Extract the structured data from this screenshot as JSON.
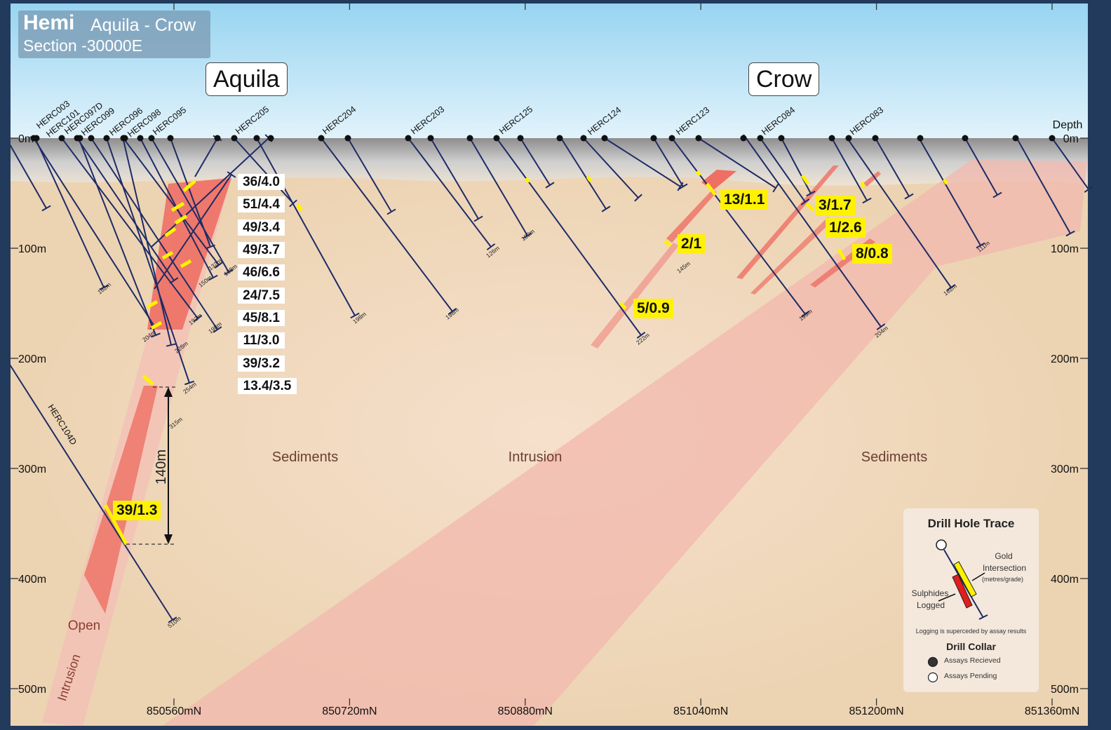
{
  "header": {
    "prospect": "Hemi",
    "deposits": "Aquila - Crow",
    "section": "Section -30000E"
  },
  "site_labels": {
    "aquila": "Aquila",
    "crow": "Crow"
  },
  "depth_label": "Depth",
  "depth_ticks": [
    "0m",
    "100m",
    "200m",
    "300m",
    "400m",
    "500m"
  ],
  "easting_ticks": [
    "850560mN",
    "850720mN",
    "850880mN",
    "851040mN",
    "851200mN",
    "851360mN"
  ],
  "hole_names": [
    "HERC003",
    "HERC101",
    "HERC097D",
    "HERC099",
    "HERC096",
    "HERC098",
    "HERC095",
    "HERC205",
    "HERC204",
    "HERC203",
    "HERC125",
    "HERC124",
    "HERC123",
    "HERC084",
    "HERC083",
    "HERC104D"
  ],
  "depth_marks": [
    "162m",
    "132m",
    "138m",
    "150m",
    "192m",
    "198m",
    "204m",
    "228m",
    "254m",
    "315m",
    "198m",
    "198m",
    "126m",
    "102m",
    "145m",
    "222m",
    "199m",
    "204m",
    "111m",
    "162m",
    "510m"
  ],
  "aquila_intersections": [
    "36/4.0",
    "51/4.4",
    "49/3.4",
    "49/3.7",
    "46/6.6",
    "24/7.5",
    "45/8.1",
    "11/3.0",
    "39/3.2",
    "13.4/3.5"
  ],
  "highlight_intersections": [
    "13/1.1",
    "3/1.7",
    "1/2.6",
    "2/1",
    "8/0.8",
    "5/0.9",
    "39/1.3"
  ],
  "geology_labels": {
    "sed_left": "Sediments",
    "intrusion": "Intrusion",
    "sed_right": "Sediments",
    "open": "Open",
    "intrusion_rot": "Intrusion"
  },
  "span_label": "140m",
  "legend": {
    "title": "Drill Hole Trace",
    "gold": "Gold",
    "intersection": "Intersection",
    "metres_grade": "(metres/grade)",
    "sulphides": "Sulphides",
    "logged": "Logged",
    "note": "Logging is superceded by assay results",
    "collar_title": "Drill Collar",
    "received": "Assays Recieved",
    "pending": "Assays Pending"
  },
  "colors": {
    "sky": "#bfe5f7",
    "ground": "#efd7b6",
    "intrusion": "#f2b6ac",
    "mineralised": "#ee6f64",
    "drill": "#1d2b66",
    "gold": "#fff200",
    "sulphide": "#e11d1d",
    "frame": "#223a5c"
  }
}
